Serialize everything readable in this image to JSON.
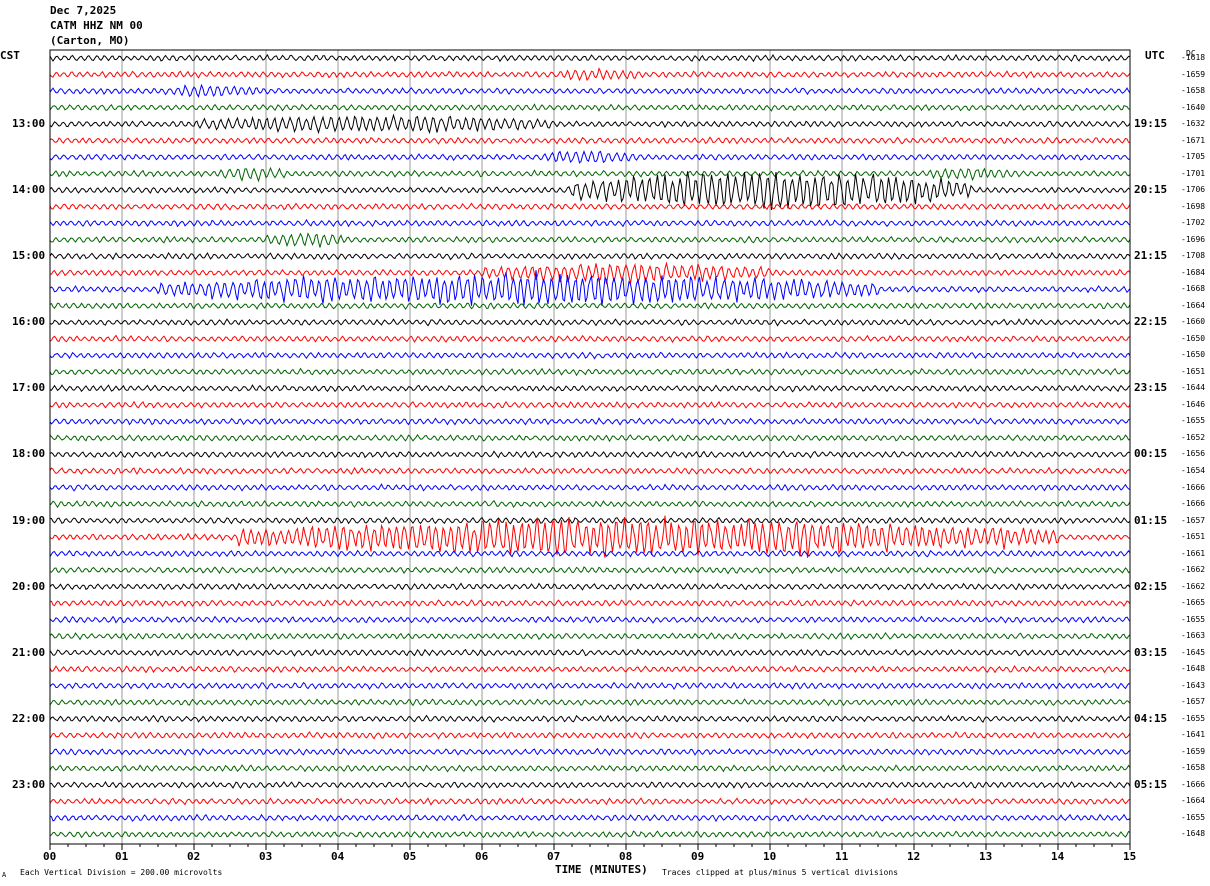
{
  "header": {
    "date": "Dec 7,2025",
    "station": "CATM HHZ NM 00",
    "location": "(Carton, MO)"
  },
  "labels": {
    "left_tz": "CST",
    "right_tz": "UTC",
    "dc": "DC"
  },
  "footer": {
    "xlabel": "TIME (MINUTES)",
    "scale_note": "Each Vertical Division =  200.00 microvolts",
    "clip_note": "Traces clipped at plus/minus 5 vertical divisions",
    "corner_mark": "A"
  },
  "chart_data": {
    "type": "line",
    "title": "CATM HHZ NM 00 (Carton, MO) Dec 7,2025",
    "xlabel": "TIME (MINUTES)",
    "xlim": [
      0,
      15
    ],
    "x_ticks": [
      "00",
      "01",
      "02",
      "03",
      "04",
      "05",
      "06",
      "07",
      "08",
      "09",
      "10",
      "11",
      "12",
      "13",
      "14",
      "15"
    ],
    "grid": true,
    "trace_colors": [
      "#000000",
      "#ff0000",
      "#0000ff",
      "#006400"
    ],
    "hour_labels_cst": [
      "13:00",
      "14:00",
      "15:00",
      "16:00",
      "17:00",
      "18:00",
      "19:00",
      "20:00",
      "21:00",
      "22:00",
      "23:00"
    ],
    "hour_labels_utc": [
      "19:15",
      "20:15",
      "21:15",
      "22:15",
      "23:15",
      "00:15",
      "01:15",
      "02:15",
      "03:15",
      "04:15",
      "05:15"
    ],
    "dc_offsets": [
      -1618,
      -1659,
      -1658,
      -1640,
      -1632,
      -1671,
      -1705,
      -1701,
      -1706,
      -1698,
      -1702,
      -1696,
      -1708,
      -1684,
      -1668,
      -1664,
      -1660,
      -1650,
      -1650,
      -1651,
      -1644,
      -1646,
      -1655,
      -1652,
      -1656,
      -1654,
      -1666,
      -1666,
      -1657,
      -1651,
      -1661,
      -1662,
      -1662,
      -1665,
      -1655,
      -1663,
      -1645,
      -1648,
      -1643,
      -1657,
      -1655,
      -1641,
      -1659,
      -1658,
      -1666,
      -1664,
      -1655,
      -1648
    ],
    "events": [
      {
        "trace": 1,
        "x_start": 7.0,
        "x_end": 8.2,
        "amp": 4
      },
      {
        "trace": 2,
        "x_start": 1.6,
        "x_end": 2.9,
        "amp": 5
      },
      {
        "trace": 4,
        "x_start": 2.0,
        "x_end": 7.0,
        "amp": 8
      },
      {
        "trace": 6,
        "x_start": 6.8,
        "x_end": 8.2,
        "amp": 5
      },
      {
        "trace": 7,
        "x_start": 2.3,
        "x_end": 3.3,
        "amp": 5
      },
      {
        "trace": 7,
        "x_start": 12.2,
        "x_end": 13.4,
        "amp": 5
      },
      {
        "trace": 8,
        "x_start": 7.2,
        "x_end": 12.8,
        "amp": 22
      },
      {
        "trace": 11,
        "x_start": 3.0,
        "x_end": 4.1,
        "amp": 6
      },
      {
        "trace": 13,
        "x_start": 6.0,
        "x_end": 10.0,
        "amp": 10
      },
      {
        "trace": 14,
        "x_start": 1.5,
        "x_end": 11.5,
        "amp": 18
      },
      {
        "trace": 29,
        "x_start": 2.6,
        "x_end": 14.0,
        "amp": 22
      }
    ]
  }
}
